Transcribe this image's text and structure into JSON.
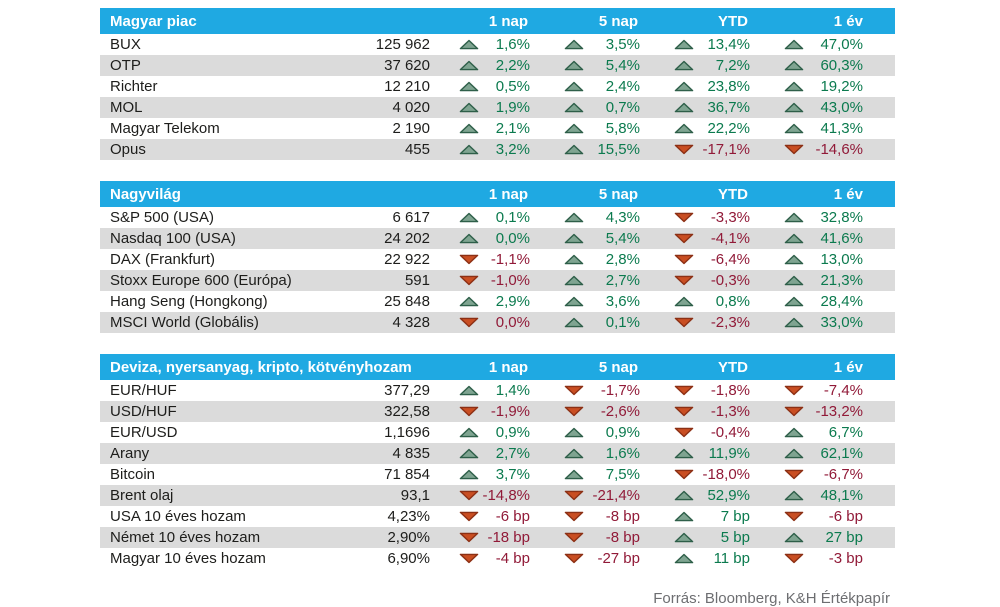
{
  "colors": {
    "header_bg": "#1FA9E2",
    "header_text": "#FFFFFF",
    "zebra": "#DBDBDB",
    "text": "#1D1D1B",
    "up_text": "#0B7A4E",
    "up_fill": "#7FA491",
    "up_stroke": "#2E5F49",
    "down_text": "#911A38",
    "down_fill": "#C94E22",
    "down_stroke": "#8C3015",
    "source_text": "#6D6E71"
  },
  "columns": [
    "1 nap",
    "5 nap",
    "YTD",
    "1 év"
  ],
  "footer": {
    "source": "Forrás: Bloomberg, K&H Értékpapír"
  },
  "chart_data": [
    {
      "type": "table",
      "title": "Magyar piac",
      "columns": [
        "1 nap",
        "5 nap",
        "YTD",
        "1 év"
      ],
      "rows": [
        {
          "name": "BUX",
          "value": "125 962",
          "changes": [
            {
              "dir": "up",
              "text": "1,6%"
            },
            {
              "dir": "up",
              "text": "3,5%"
            },
            {
              "dir": "up",
              "text": "13,4%"
            },
            {
              "dir": "up",
              "text": "47,0%"
            }
          ]
        },
        {
          "name": "OTP",
          "value": "37 620",
          "changes": [
            {
              "dir": "up",
              "text": "2,2%"
            },
            {
              "dir": "up",
              "text": "5,4%"
            },
            {
              "dir": "up",
              "text": "7,2%"
            },
            {
              "dir": "up",
              "text": "60,3%"
            }
          ]
        },
        {
          "name": "Richter",
          "value": "12 210",
          "changes": [
            {
              "dir": "up",
              "text": "0,5%"
            },
            {
              "dir": "up",
              "text": "2,4%"
            },
            {
              "dir": "up",
              "text": "23,8%"
            },
            {
              "dir": "up",
              "text": "19,2%"
            }
          ]
        },
        {
          "name": "MOL",
          "value": "4 020",
          "changes": [
            {
              "dir": "up",
              "text": "1,9%"
            },
            {
              "dir": "up",
              "text": "0,7%"
            },
            {
              "dir": "up",
              "text": "36,7%"
            },
            {
              "dir": "up",
              "text": "43,0%"
            }
          ]
        },
        {
          "name": "Magyar Telekom",
          "value": "2 190",
          "changes": [
            {
              "dir": "up",
              "text": "2,1%"
            },
            {
              "dir": "up",
              "text": "5,8%"
            },
            {
              "dir": "up",
              "text": "22,2%"
            },
            {
              "dir": "up",
              "text": "41,3%"
            }
          ]
        },
        {
          "name": "Opus",
          "value": "455",
          "changes": [
            {
              "dir": "up",
              "text": "3,2%"
            },
            {
              "dir": "up",
              "text": "15,5%"
            },
            {
              "dir": "down",
              "text": "-17,1%"
            },
            {
              "dir": "down",
              "text": "-14,6%"
            }
          ]
        }
      ]
    },
    {
      "type": "table",
      "title": "Nagyvilág",
      "columns": [
        "1 nap",
        "5 nap",
        "YTD",
        "1 év"
      ],
      "rows": [
        {
          "name": "S&P 500 (USA)",
          "value": "6 617",
          "changes": [
            {
              "dir": "up",
              "text": "0,1%"
            },
            {
              "dir": "up",
              "text": "4,3%"
            },
            {
              "dir": "down",
              "text": "-3,3%"
            },
            {
              "dir": "up",
              "text": "32,8%"
            }
          ]
        },
        {
          "name": "Nasdaq 100 (USA)",
          "value": "24 202",
          "changes": [
            {
              "dir": "up",
              "text": "0,0%"
            },
            {
              "dir": "up",
              "text": "5,4%"
            },
            {
              "dir": "down",
              "text": "-4,1%"
            },
            {
              "dir": "up",
              "text": "41,6%"
            }
          ]
        },
        {
          "name": "DAX (Frankfurt)",
          "value": "22 922",
          "changes": [
            {
              "dir": "down",
              "text": "-1,1%"
            },
            {
              "dir": "up",
              "text": "2,8%"
            },
            {
              "dir": "down",
              "text": "-6,4%"
            },
            {
              "dir": "up",
              "text": "13,0%"
            }
          ]
        },
        {
          "name": "Stoxx Europe 600 (Európa)",
          "value": "591",
          "changes": [
            {
              "dir": "down",
              "text": "-1,0%"
            },
            {
              "dir": "up",
              "text": "2,7%"
            },
            {
              "dir": "down",
              "text": "-0,3%"
            },
            {
              "dir": "up",
              "text": "21,3%"
            }
          ]
        },
        {
          "name": "Hang Seng (Hongkong)",
          "value": "25 848",
          "changes": [
            {
              "dir": "up",
              "text": "2,9%"
            },
            {
              "dir": "up",
              "text": "3,6%"
            },
            {
              "dir": "up",
              "text": "0,8%"
            },
            {
              "dir": "up",
              "text": "28,4%"
            }
          ]
        },
        {
          "name": "MSCI World (Globális)",
          "value": "4 328",
          "changes": [
            {
              "dir": "down",
              "text": "0,0%"
            },
            {
              "dir": "up",
              "text": "0,1%"
            },
            {
              "dir": "down",
              "text": "-2,3%"
            },
            {
              "dir": "up",
              "text": "33,0%"
            }
          ]
        }
      ]
    },
    {
      "type": "table",
      "title": "Deviza, nyersanyag, kripto, kötvényhozam",
      "columns": [
        "1 nap",
        "5 nap",
        "YTD",
        "1 év"
      ],
      "rows": [
        {
          "name": "EUR/HUF",
          "value": "377,29",
          "changes": [
            {
              "dir": "up",
              "text": "1,4%"
            },
            {
              "dir": "down",
              "text": "-1,7%"
            },
            {
              "dir": "down",
              "text": "-1,8%"
            },
            {
              "dir": "down",
              "text": "-7,4%"
            }
          ]
        },
        {
          "name": "USD/HUF",
          "value": "322,58",
          "changes": [
            {
              "dir": "down",
              "text": "-1,9%"
            },
            {
              "dir": "down",
              "text": "-2,6%"
            },
            {
              "dir": "down",
              "text": "-1,3%"
            },
            {
              "dir": "down",
              "text": "-13,2%"
            }
          ]
        },
        {
          "name": "EUR/USD",
          "value": "1,1696",
          "changes": [
            {
              "dir": "up",
              "text": "0,9%"
            },
            {
              "dir": "up",
              "text": "0,9%"
            },
            {
              "dir": "down",
              "text": "-0,4%"
            },
            {
              "dir": "up",
              "text": "6,7%"
            }
          ]
        },
        {
          "name": "Arany",
          "value": "4 835",
          "changes": [
            {
              "dir": "up",
              "text": "2,7%"
            },
            {
              "dir": "up",
              "text": "1,6%"
            },
            {
              "dir": "up",
              "text": "11,9%"
            },
            {
              "dir": "up",
              "text": "62,1%"
            }
          ]
        },
        {
          "name": "Bitcoin",
          "value": "71 854",
          "changes": [
            {
              "dir": "up",
              "text": "3,7%"
            },
            {
              "dir": "up",
              "text": "7,5%"
            },
            {
              "dir": "down",
              "text": "-18,0%"
            },
            {
              "dir": "down",
              "text": "-6,7%"
            }
          ]
        },
        {
          "name": "Brent olaj",
          "value": "93,1",
          "changes": [
            {
              "dir": "down",
              "text": "-14,8%"
            },
            {
              "dir": "down",
              "text": "-21,4%"
            },
            {
              "dir": "up",
              "text": "52,9%"
            },
            {
              "dir": "up",
              "text": "48,1%"
            }
          ]
        },
        {
          "name": "USA 10 éves hozam",
          "value": "4,23%",
          "changes": [
            {
              "dir": "down",
              "text": "-6 bp"
            },
            {
              "dir": "down",
              "text": "-8 bp"
            },
            {
              "dir": "up",
              "text": "7 bp"
            },
            {
              "dir": "down",
              "text": "-6 bp"
            }
          ]
        },
        {
          "name": "Német 10 éves hozam",
          "value": "2,90%",
          "changes": [
            {
              "dir": "down",
              "text": "-18 bp"
            },
            {
              "dir": "down",
              "text": "-8 bp"
            },
            {
              "dir": "up",
              "text": "5 bp"
            },
            {
              "dir": "up",
              "text": "27 bp"
            }
          ]
        },
        {
          "name": "Magyar 10 éves hozam",
          "value": "6,90%",
          "changes": [
            {
              "dir": "down",
              "text": "-4 bp"
            },
            {
              "dir": "down",
              "text": "-27 bp"
            },
            {
              "dir": "up",
              "text": "11 bp"
            },
            {
              "dir": "down",
              "text": "-3 bp"
            }
          ]
        }
      ]
    }
  ]
}
